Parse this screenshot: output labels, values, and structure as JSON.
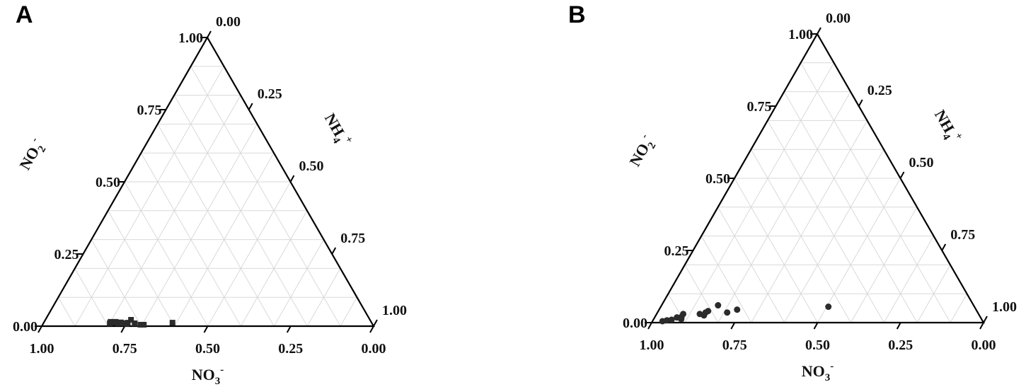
{
  "panels": [
    {
      "letter": "A"
    },
    {
      "letter": "B"
    }
  ],
  "chart_data": [
    {
      "type": "scatter",
      "subtype": "ternary",
      "panel": "A",
      "axes": {
        "bottom": "NO3-",
        "left": "NO2-",
        "right": "NH4+"
      },
      "axis_labels": {
        "bottom": "NO3",
        "bottom_charge": "-",
        "left": "NO2",
        "left_charge": "-",
        "right": "NH4",
        "right_charge": "+"
      },
      "ticks": [
        "0.00",
        "0.25",
        "0.50",
        "0.75",
        "1.00"
      ],
      "grid": true,
      "marker": "square",
      "marker_color": "#2b2b2b",
      "points": [
        {
          "NO3": 0.79,
          "NO2": 0.01
        },
        {
          "NO3": 0.785,
          "NO2": 0.015
        },
        {
          "NO3": 0.775,
          "NO2": 0.012
        },
        {
          "NO3": 0.77,
          "NO2": 0.015
        },
        {
          "NO3": 0.765,
          "NO2": 0.01
        },
        {
          "NO3": 0.755,
          "NO2": 0.013
        },
        {
          "NO3": 0.745,
          "NO2": 0.01
        },
        {
          "NO3": 0.74,
          "NO2": 0.008
        },
        {
          "NO3": 0.735,
          "NO2": 0.012
        },
        {
          "NO3": 0.72,
          "NO2": 0.022
        },
        {
          "NO3": 0.715,
          "NO2": 0.01
        },
        {
          "NO3": 0.7,
          "NO2": 0.005
        },
        {
          "NO3": 0.69,
          "NO2": 0.005
        },
        {
          "NO3": 0.6,
          "NO2": 0.012
        }
      ]
    },
    {
      "type": "scatter",
      "subtype": "ternary",
      "panel": "B",
      "axes": {
        "bottom": "NO3-",
        "left": "NO2-",
        "right": "NH4+"
      },
      "axis_labels": {
        "bottom": "NO3",
        "bottom_charge": "-",
        "left": "NO2",
        "left_charge": "-",
        "right": "NH4",
        "right_charge": "+"
      },
      "ticks": [
        "0.00",
        "0.25",
        "0.50",
        "0.75",
        "1.00"
      ],
      "grid": true,
      "marker": "circle",
      "marker_color": "#2b2b2b",
      "points": [
        {
          "NO3": 0.965,
          "NO2": 0.005
        },
        {
          "NO3": 0.95,
          "NO2": 0.008
        },
        {
          "NO3": 0.935,
          "NO2": 0.01
        },
        {
          "NO3": 0.915,
          "NO2": 0.018
        },
        {
          "NO3": 0.905,
          "NO2": 0.012
        },
        {
          "NO3": 0.9,
          "NO2": 0.02
        },
        {
          "NO3": 0.89,
          "NO2": 0.03
        },
        {
          "NO3": 0.84,
          "NO2": 0.03
        },
        {
          "NO3": 0.83,
          "NO2": 0.025
        },
        {
          "NO3": 0.82,
          "NO2": 0.035
        },
        {
          "NO3": 0.81,
          "NO2": 0.04
        },
        {
          "NO3": 0.77,
          "NO2": 0.06
        },
        {
          "NO3": 0.755,
          "NO2": 0.035
        },
        {
          "NO3": 0.72,
          "NO2": 0.045
        },
        {
          "NO3": 0.44,
          "NO2": 0.055
        }
      ]
    }
  ]
}
